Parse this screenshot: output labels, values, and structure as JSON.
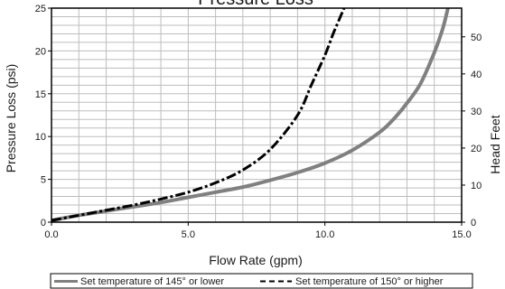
{
  "chart_data": {
    "type": "line",
    "title": "Pressure Loss",
    "xlabel": "Flow Rate (gpm)",
    "ylabel": "Pressure Loss (psi)",
    "y2label": "Head Feet",
    "xlim": [
      0,
      15
    ],
    "ylim": [
      0,
      25
    ],
    "y2lim": [
      0,
      57.75
    ],
    "x_ticks": [
      "0.0",
      "5.0",
      "10.0",
      "15.0"
    ],
    "y_ticks": [
      "0",
      "5",
      "10",
      "15",
      "20",
      "25"
    ],
    "y2_ticks": [
      "0",
      "10",
      "20",
      "30",
      "40",
      "50"
    ],
    "grid": true,
    "legend_position": "bottom",
    "series": [
      {
        "name": "Set temperature of 145° or lower",
        "color": "#808080",
        "style": "solid",
        "x": [
          0,
          1,
          2,
          3,
          4,
          5,
          6,
          7,
          8,
          9,
          10,
          11,
          12,
          12.5,
          13,
          13.5,
          14,
          14.3,
          14.5
        ],
        "y": [
          0.2,
          0.8,
          1.3,
          1.8,
          2.3,
          2.9,
          3.5,
          4.1,
          4.9,
          5.8,
          6.9,
          8.4,
          10.5,
          12.0,
          13.9,
          16.2,
          19.8,
          22.5,
          25
        ]
      },
      {
        "name": "Set temperature of 150° or higher",
        "color": "#000000",
        "style": "dashed",
        "x": [
          0,
          1,
          2,
          3,
          4,
          5,
          6,
          7,
          8,
          9,
          9.5,
          10,
          10.3,
          10.5,
          10.7
        ],
        "y": [
          0.2,
          0.8,
          1.4,
          2.0,
          2.7,
          3.5,
          4.6,
          6.1,
          8.5,
          12.5,
          16.0,
          19.5,
          22.0,
          23.5,
          25
        ]
      }
    ]
  }
}
